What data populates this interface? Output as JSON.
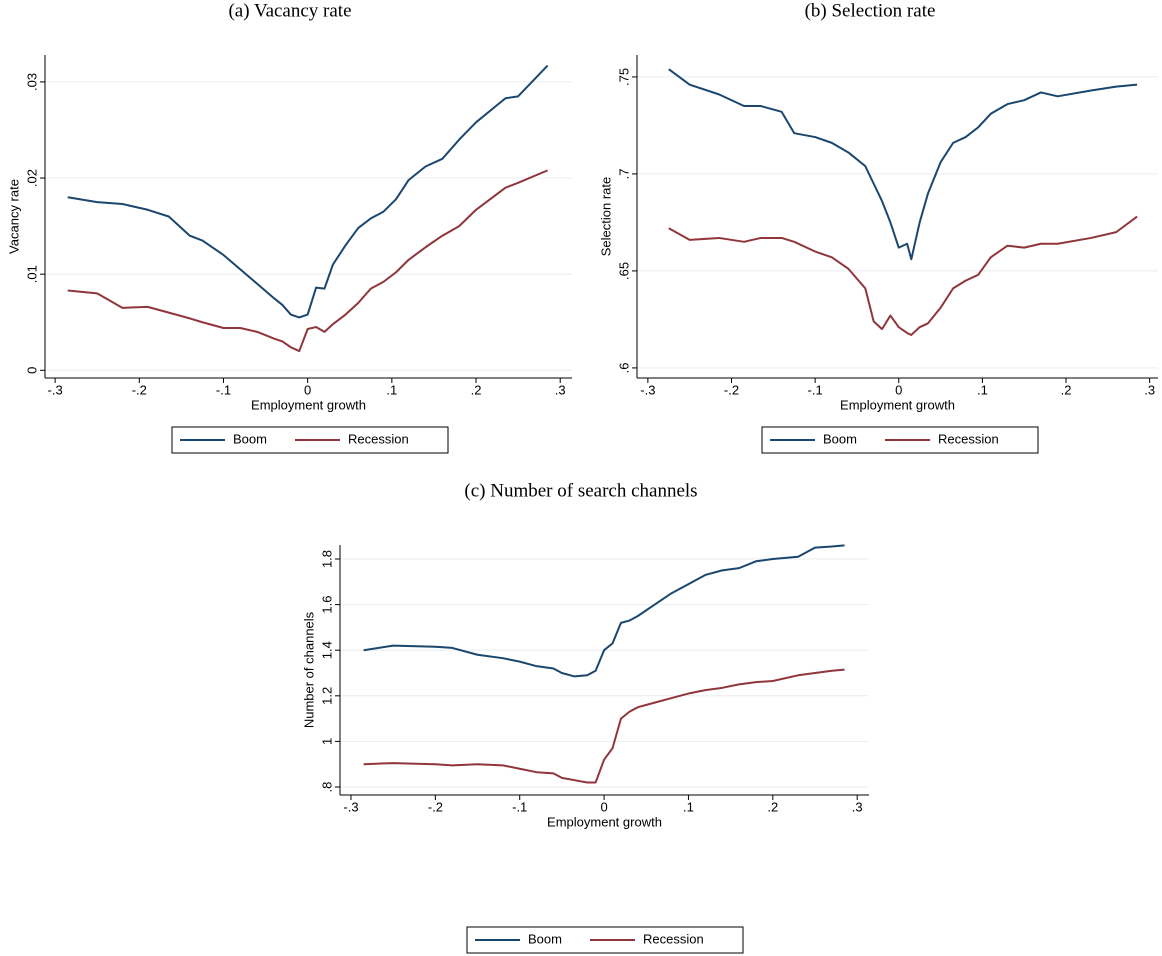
{
  "chart_data": [
    {
      "type": "line",
      "title": "(a) Vacancy rate",
      "xlabel": "Employment growth",
      "ylabel": "Vacancy rate",
      "x": [
        -0.285,
        -0.25,
        -0.22,
        -0.19,
        -0.165,
        -0.14,
        -0.125,
        -0.1,
        -0.08,
        -0.06,
        -0.04,
        -0.03,
        -0.02,
        -0.01,
        0,
        0.01,
        0.02,
        0.03,
        0.045,
        0.06,
        0.075,
        0.09,
        0.105,
        0.12,
        0.14,
        0.16,
        0.18,
        0.2,
        0.235,
        0.25,
        0.285
      ],
      "series": [
        {
          "name": "Boom",
          "color": "#1a476f",
          "values": [
            0.018,
            0.0175,
            0.0173,
            0.0167,
            0.016,
            0.014,
            0.0135,
            0.012,
            0.0105,
            0.009,
            0.0075,
            0.0068,
            0.0058,
            0.0055,
            0.0058,
            0.0086,
            0.0085,
            0.011,
            0.013,
            0.0148,
            0.0158,
            0.0165,
            0.0178,
            0.0198,
            0.0212,
            0.022,
            0.024,
            0.0258,
            0.0283,
            0.0285,
            0.0317
          ]
        },
        {
          "name": "Recession",
          "color": "#90353b",
          "values": [
            0.0083,
            0.008,
            0.0065,
            0.0066,
            0.006,
            0.0054,
            0.005,
            0.0044,
            0.0044,
            0.004,
            0.0033,
            0.003,
            0.0024,
            0.002,
            0.0043,
            0.0045,
            0.004,
            0.0048,
            0.0058,
            0.007,
            0.0085,
            0.0092,
            0.0102,
            0.0115,
            0.0128,
            0.014,
            0.015,
            0.0167,
            0.019,
            0.0195,
            0.0208
          ]
        }
      ],
      "xlim": [
        -0.312,
        0.314
      ],
      "ylim": [
        -0.0008,
        0.0328
      ],
      "xticks": [
        {
          "value": -0.3,
          "label": "-.3"
        },
        {
          "value": -0.2,
          "label": "-.2"
        },
        {
          "value": -0.1,
          "label": "-.1"
        },
        0,
        {
          "value": 0.1,
          "label": ".1"
        },
        {
          "value": 0.2,
          "label": ".2"
        },
        {
          "value": 0.3,
          "label": ".3"
        }
      ],
      "yticks": [
        0,
        {
          "value": 0.01,
          "label": ".01"
        },
        {
          "value": 0.02,
          "label": ".02"
        },
        {
          "value": 0.03,
          "label": ".03"
        }
      ],
      "grid": true,
      "legend": "bottom"
    },
    {
      "type": "line",
      "title": "(b) Selection rate",
      "xlabel": "Employment growth",
      "ylabel": "Selection rate",
      "x": [
        -0.275,
        -0.25,
        -0.215,
        -0.185,
        -0.165,
        -0.14,
        -0.125,
        -0.1,
        -0.08,
        -0.06,
        -0.04,
        -0.03,
        -0.02,
        -0.01,
        0,
        0.01,
        0.015,
        0.025,
        0.035,
        0.05,
        0.065,
        0.08,
        0.095,
        0.11,
        0.13,
        0.15,
        0.17,
        0.19,
        0.23,
        0.26,
        0.285
      ],
      "series": [
        {
          "name": "Boom",
          "color": "#1a476f",
          "values": [
            0.754,
            0.746,
            0.741,
            0.735,
            0.735,
            0.732,
            0.721,
            0.719,
            0.716,
            0.711,
            0.704,
            0.695,
            0.686,
            0.675,
            0.662,
            0.664,
            0.656,
            0.675,
            0.69,
            0.706,
            0.716,
            0.719,
            0.724,
            0.731,
            0.736,
            0.738,
            0.742,
            0.74,
            0.743,
            0.745,
            0.746
          ]
        },
        {
          "name": "Recession",
          "color": "#90353b",
          "values": [
            0.672,
            0.666,
            0.667,
            0.665,
            0.667,
            0.667,
            0.665,
            0.66,
            0.657,
            0.651,
            0.641,
            0.624,
            0.62,
            0.627,
            0.621,
            0.618,
            0.617,
            0.621,
            0.623,
            0.631,
            0.641,
            0.645,
            0.648,
            0.657,
            0.663,
            0.662,
            0.664,
            0.664,
            0.667,
            0.67,
            0.678
          ]
        }
      ],
      "xlim": [
        -0.313,
        0.31
      ],
      "ylim": [
        0.5948,
        0.7613
      ],
      "xticks": [
        {
          "value": -0.3,
          "label": "-.3"
        },
        {
          "value": -0.2,
          "label": "-.2"
        },
        {
          "value": -0.1,
          "label": "-.1"
        },
        0,
        {
          "value": 0.1,
          "label": ".1"
        },
        {
          "value": 0.2,
          "label": ".2"
        },
        {
          "value": 0.3,
          "label": ".3"
        }
      ],
      "yticks": [
        {
          "value": 0.6,
          "label": ".6"
        },
        {
          "value": 0.65,
          "label": ".65"
        },
        {
          "value": 0.7,
          "label": ".7"
        },
        {
          "value": 0.75,
          "label": ".75"
        }
      ],
      "grid": true,
      "legend": "bottom"
    },
    {
      "type": "line",
      "title": "(c) Number of search channels",
      "xlabel": "Employment growth",
      "ylabel": "Number of channels",
      "x": [
        -0.285,
        -0.25,
        -0.2,
        -0.18,
        -0.15,
        -0.12,
        -0.1,
        -0.08,
        -0.06,
        -0.05,
        -0.035,
        -0.02,
        -0.01,
        0,
        0.01,
        0.02,
        0.03,
        0.04,
        0.06,
        0.08,
        0.1,
        0.12,
        0.14,
        0.16,
        0.18,
        0.2,
        0.23,
        0.25,
        0.27,
        0.285
      ],
      "series": [
        {
          "name": "Boom",
          "color": "#1a476f",
          "values": [
            1.4,
            1.42,
            1.415,
            1.41,
            1.38,
            1.365,
            1.35,
            1.33,
            1.32,
            1.3,
            1.285,
            1.29,
            1.31,
            1.4,
            1.43,
            1.52,
            1.53,
            1.55,
            1.6,
            1.65,
            1.69,
            1.73,
            1.75,
            1.76,
            1.79,
            1.8,
            1.81,
            1.85,
            1.855,
            1.86
          ]
        },
        {
          "name": "Recession",
          "color": "#90353b",
          "values": [
            0.9,
            0.905,
            0.9,
            0.895,
            0.9,
            0.895,
            0.88,
            0.865,
            0.86,
            0.84,
            0.83,
            0.82,
            0.82,
            0.92,
            0.97,
            1.1,
            1.13,
            1.15,
            1.17,
            1.19,
            1.21,
            1.225,
            1.235,
            1.25,
            1.26,
            1.265,
            1.29,
            1.3,
            1.31,
            1.315
          ]
        }
      ],
      "xlim": [
        -0.313,
        0.314
      ],
      "ylim": [
        0.765,
        1.8614
      ],
      "xticks": [
        {
          "value": -0.3,
          "label": "-.3"
        },
        {
          "value": -0.2,
          "label": "-.2"
        },
        {
          "value": -0.1,
          "label": "-.1"
        },
        0,
        {
          "value": 0.1,
          "label": ".1"
        },
        {
          "value": 0.2,
          "label": ".2"
        },
        {
          "value": 0.3,
          "label": ".3"
        }
      ],
      "yticks": [
        {
          "value": 0.8,
          "label": ".8"
        },
        1,
        {
          "value": 1.2,
          "label": "1.2"
        },
        {
          "value": 1.4,
          "label": "1.4"
        },
        {
          "value": 1.6,
          "label": "1.6"
        },
        {
          "value": 1.8,
          "label": "1.8"
        }
      ],
      "grid": true,
      "legend": "bottom"
    }
  ]
}
